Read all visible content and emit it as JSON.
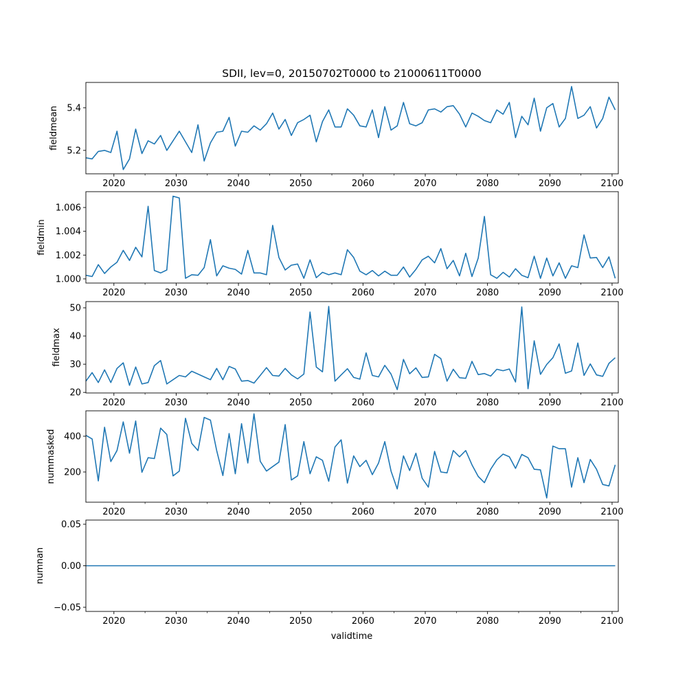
{
  "chart_data": [
    {
      "type": "line",
      "title": "SDII, lev=0, 20150702T0000 to 21000611T0000",
      "ylabel": "fieldmean",
      "xlabel": "",
      "xlim": [
        2015.5,
        2101
      ],
      "ylim": [
        5.09,
        5.519
      ],
      "x_start": 2015.5,
      "x_step": 1,
      "xticks": [
        2020,
        2030,
        2040,
        2050,
        2060,
        2070,
        2080,
        2090,
        2100
      ],
      "xtick_labels": [
        "2020",
        "2030",
        "2040",
        "2050",
        "2060",
        "2070",
        "2080",
        "2090",
        "2100"
      ],
      "yticks": [
        5.2,
        5.4
      ],
      "ytick_labels": [
        "5.2",
        "5.4"
      ],
      "values": [
        5.165,
        5.16,
        5.195,
        5.2,
        5.19,
        5.29,
        5.11,
        5.16,
        5.3,
        5.185,
        5.245,
        5.23,
        5.27,
        5.2,
        5.245,
        5.29,
        5.24,
        5.19,
        5.32,
        5.15,
        5.235,
        5.285,
        5.29,
        5.355,
        5.22,
        5.29,
        5.285,
        5.315,
        5.295,
        5.325,
        5.375,
        5.3,
        5.345,
        5.27,
        5.33,
        5.345,
        5.365,
        5.24,
        5.335,
        5.39,
        5.31,
        5.31,
        5.395,
        5.365,
        5.315,
        5.31,
        5.39,
        5.26,
        5.405,
        5.295,
        5.315,
        5.425,
        5.325,
        5.315,
        5.33,
        5.39,
        5.395,
        5.38,
        5.405,
        5.41,
        5.37,
        5.31,
        5.375,
        5.36,
        5.34,
        5.33,
        5.39,
        5.37,
        5.425,
        5.26,
        5.36,
        5.32,
        5.445,
        5.29,
        5.4,
        5.42,
        5.31,
        5.35,
        5.5,
        5.35,
        5.365,
        5.405,
        5.305,
        5.35,
        5.45,
        5.39
      ]
    },
    {
      "type": "line",
      "ylabel": "fieldmin",
      "xlim": [
        2015.5,
        2101
      ],
      "ylim": [
        0.99965,
        1.00733
      ],
      "x_start": 2015.5,
      "x_step": 1,
      "xticks": [
        2020,
        2030,
        2040,
        2050,
        2060,
        2070,
        2080,
        2090,
        2100
      ],
      "xtick_labels": [
        "2020",
        "2030",
        "2040",
        "2050",
        "2060",
        "2070",
        "2080",
        "2090",
        "2100"
      ],
      "yticks": [
        1.0,
        1.002,
        1.004,
        1.006
      ],
      "ytick_labels": [
        "1.000",
        "1.002",
        "1.004",
        "1.006"
      ],
      "values": [
        1.0003,
        1.0002,
        1.0012,
        1.00045,
        1.001,
        1.0014,
        1.0024,
        1.00155,
        1.00265,
        1.00185,
        1.0061,
        1.0007,
        1.0005,
        1.00075,
        1.00695,
        1.0068,
        1.00005,
        1.00035,
        1.0003,
        1.00095,
        1.0033,
        1.00025,
        1.0011,
        1.0009,
        1.0008,
        1.0004,
        1.0024,
        1.0005,
        1.0005,
        1.00035,
        1.0045,
        1.0018,
        1.00075,
        1.00115,
        1.00125,
        1.00005,
        1.0016,
        1.0001,
        1.00055,
        1.00035,
        1.0005,
        1.00035,
        1.00245,
        1.0018,
        1.00065,
        1.00035,
        1.0007,
        1.00025,
        1.00065,
        1.0003,
        1.0003,
        1.001,
        1.00015,
        1.0008,
        1.0016,
        1.0019,
        1.00135,
        1.00255,
        1.00085,
        1.00155,
        1.00025,
        1.00215,
        1.0002,
        1.00175,
        1.00525,
        1.00035,
        1.00005,
        1.00055,
        1.00015,
        1.00085,
        1.0003,
        1.0001,
        1.0019,
        1.00005,
        1.00175,
        1.00025,
        1.00135,
        1.00005,
        1.0011,
        1.00095,
        1.0037,
        1.00175,
        1.0018,
        1.00095,
        1.00185,
        1.00005
      ]
    },
    {
      "type": "line",
      "ylabel": "fieldmax",
      "xlim": [
        2015.5,
        2101
      ],
      "ylim": [
        19.8,
        52.2
      ],
      "x_start": 2015.5,
      "x_step": 1,
      "xticks": [
        2020,
        2030,
        2040,
        2050,
        2060,
        2070,
        2080,
        2090,
        2100
      ],
      "xtick_labels": [
        "2020",
        "2030",
        "2040",
        "2050",
        "2060",
        "2070",
        "2080",
        "2090",
        "2100"
      ],
      "yticks": [
        20,
        30,
        40,
        50
      ],
      "ytick_labels": [
        "20",
        "30",
        "40",
        "50"
      ],
      "values": [
        24,
        27,
        23.5,
        28,
        23.5,
        28.5,
        30.5,
        22.5,
        29,
        23,
        23.5,
        29.5,
        31.3,
        23,
        24.5,
        26,
        25.5,
        27.5,
        26.5,
        25.5,
        24.5,
        28.5,
        24.5,
        29.2,
        28.3,
        24,
        24.2,
        23.3,
        26,
        28.8,
        26,
        25.8,
        28.5,
        26.2,
        24.8,
        26.5,
        48.5,
        29,
        27.3,
        50.5,
        24,
        26.2,
        28.4,
        25.3,
        24.7,
        34,
        26,
        25.5,
        29.6,
        26.5,
        21,
        31.7,
        26.6,
        28.7,
        25.3,
        25.5,
        33.5,
        32,
        24,
        28.2,
        25.2,
        25,
        31,
        26.3,
        26.7,
        25.8,
        28.2,
        27.7,
        28.3,
        23.7,
        50.3,
        21.3,
        38.3,
        26.4,
        29.9,
        32.3,
        37.2,
        26.8,
        27.6,
        37.5,
        26,
        30.1,
        26.2,
        25.7,
        30.3,
        32.3
      ]
    },
    {
      "type": "line",
      "ylabel": "nummasked",
      "xlim": [
        2015.5,
        2101
      ],
      "ylim": [
        31,
        542
      ],
      "x_start": 2015.5,
      "x_step": 1,
      "xticks": [
        2020,
        2030,
        2040,
        2050,
        2060,
        2070,
        2080,
        2090,
        2100
      ],
      "xtick_labels": [
        "2020",
        "2030",
        "2040",
        "2050",
        "2060",
        "2070",
        "2080",
        "2090",
        "2100"
      ],
      "yticks": [
        200,
        400
      ],
      "ytick_labels": [
        "200",
        "400"
      ],
      "values": [
        405,
        385,
        150,
        450,
        258,
        320,
        480,
        305,
        485,
        198,
        280,
        275,
        445,
        410,
        178,
        205,
        500,
        360,
        320,
        505,
        490,
        320,
        180,
        415,
        190,
        470,
        250,
        525,
        260,
        205,
        230,
        255,
        465,
        155,
        178,
        370,
        190,
        285,
        265,
        148,
        340,
        380,
        138,
        290,
        230,
        265,
        185,
        250,
        370,
        205,
        105,
        290,
        208,
        305,
        165,
        115,
        315,
        200,
        195,
        320,
        285,
        320,
        240,
        175,
        140,
        215,
        268,
        300,
        285,
        220,
        298,
        280,
        215,
        212,
        55,
        345,
        330,
        330,
        115,
        280,
        140,
        270,
        215,
        130,
        122,
        240
      ]
    },
    {
      "type": "line",
      "ylabel": "numnan",
      "xlabel": "validtime",
      "xlim": [
        2015.5,
        2101
      ],
      "ylim": [
        -0.055,
        0.055
      ],
      "x_start": 2015.5,
      "x_step": 1,
      "xticks": [
        2020,
        2030,
        2040,
        2050,
        2060,
        2070,
        2080,
        2090,
        2100
      ],
      "xtick_labels": [
        "2020",
        "2030",
        "2040",
        "2050",
        "2060",
        "2070",
        "2080",
        "2090",
        "2100"
      ],
      "yticks": [
        -0.05,
        0.0,
        0.05
      ],
      "ytick_labels": [
        "−0.05",
        "0.00",
        "0.05"
      ],
      "values": [
        0,
        0,
        0,
        0,
        0,
        0,
        0,
        0,
        0,
        0,
        0,
        0,
        0,
        0,
        0,
        0,
        0,
        0,
        0,
        0,
        0,
        0,
        0,
        0,
        0,
        0,
        0,
        0,
        0,
        0,
        0,
        0,
        0,
        0,
        0,
        0,
        0,
        0,
        0,
        0,
        0,
        0,
        0,
        0,
        0,
        0,
        0,
        0,
        0,
        0,
        0,
        0,
        0,
        0,
        0,
        0,
        0,
        0,
        0,
        0,
        0,
        0,
        0,
        0,
        0,
        0,
        0,
        0,
        0,
        0,
        0,
        0,
        0,
        0,
        0,
        0,
        0,
        0,
        0,
        0,
        0,
        0,
        0,
        0,
        0,
        0
      ]
    }
  ],
  "colors": {
    "line": "#1f77b4"
  }
}
